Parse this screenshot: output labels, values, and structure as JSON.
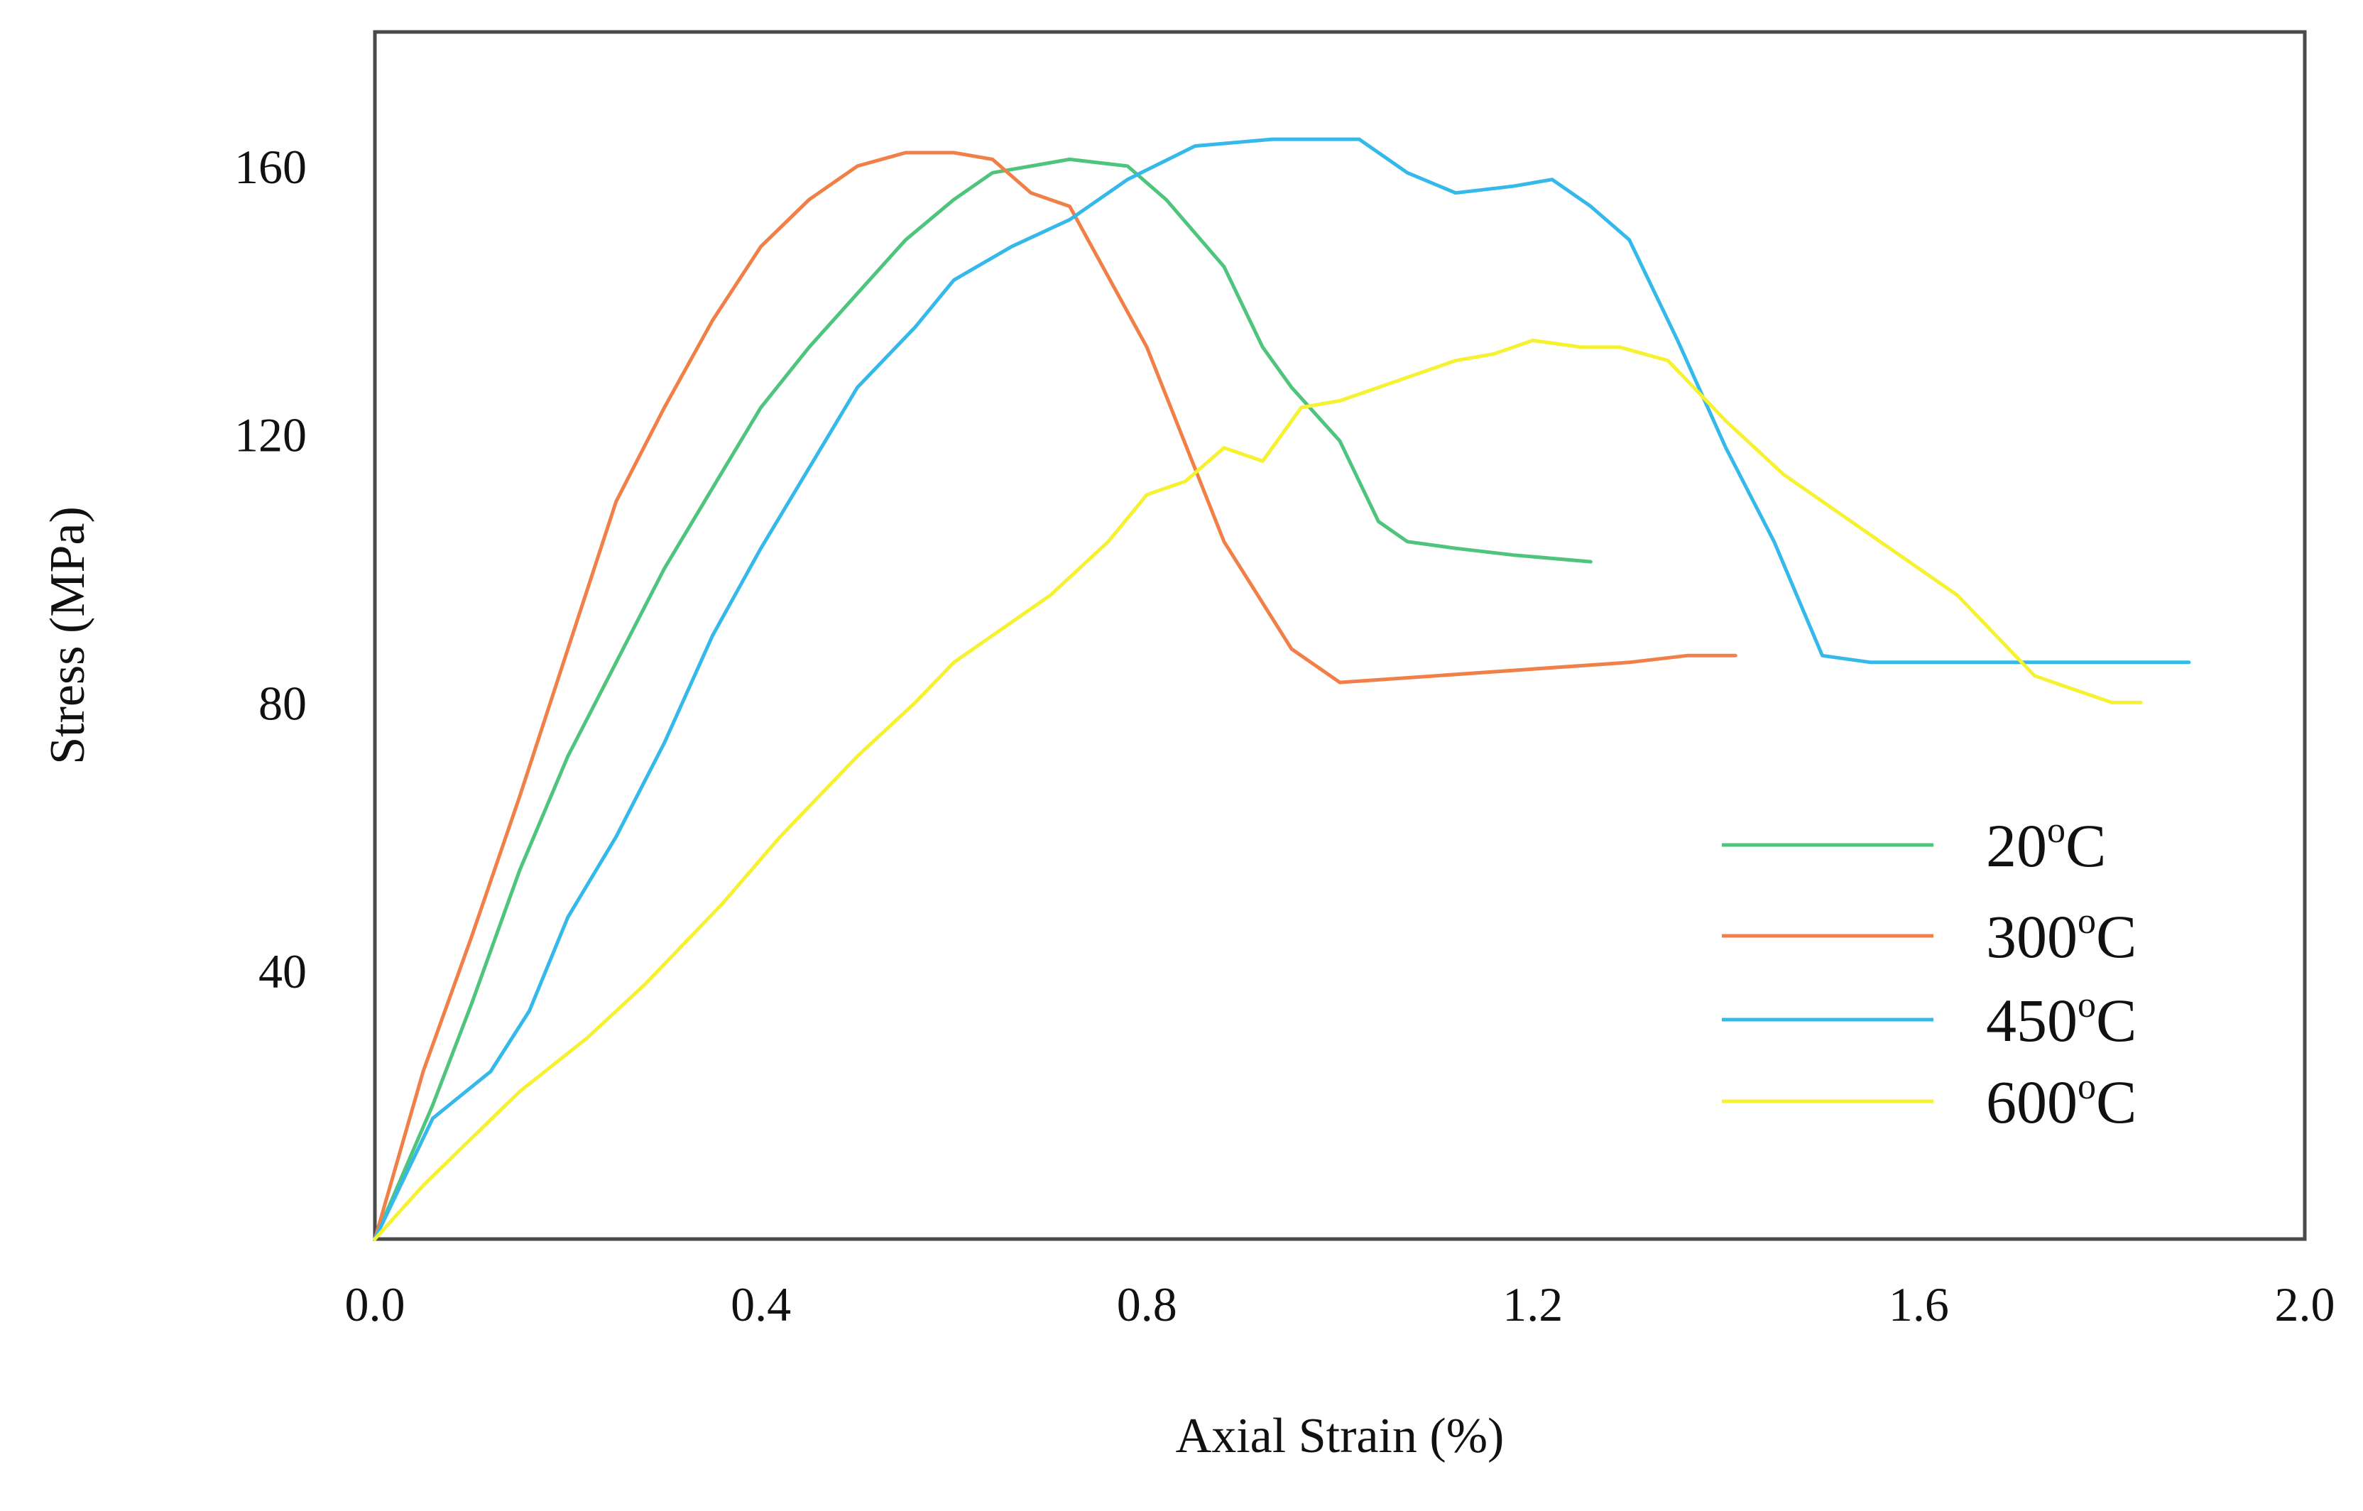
{
  "chart_data": {
    "type": "line",
    "title": "",
    "xlabel": "Axial Strain (%)",
    "ylabel": "Stress (MPa)",
    "xlim": [
      0.0,
      2.0
    ],
    "ylim": [
      0,
      180
    ],
    "x_ticks": [
      {
        "value": 0.0,
        "label": "0.0"
      },
      {
        "value": 0.4,
        "label": "0.4"
      },
      {
        "value": 0.8,
        "label": "0.8"
      },
      {
        "value": 1.2,
        "label": "1.2"
      },
      {
        "value": 1.6,
        "label": "1.6"
      },
      {
        "value": 2.0,
        "label": "2.0"
      }
    ],
    "y_ticks": [
      {
        "value": 40,
        "label": "40"
      },
      {
        "value": 80,
        "label": "80"
      },
      {
        "value": 120,
        "label": "120"
      },
      {
        "value": 160,
        "label": "160"
      }
    ],
    "grid": false,
    "legend_position": "bottom-right",
    "series": [
      {
        "name": "20°C",
        "legend_main": "20",
        "legend_sup": "o",
        "legend_unit": "C",
        "color": "#4fc47d",
        "x": [
          0.0,
          0.06,
          0.1,
          0.15,
          0.2,
          0.25,
          0.3,
          0.35,
          0.4,
          0.45,
          0.5,
          0.55,
          0.6,
          0.64,
          0.68,
          0.72,
          0.78,
          0.82,
          0.88,
          0.92,
          0.95,
          1.0,
          1.04,
          1.07,
          1.12,
          1.18,
          1.26
        ],
        "y": [
          0,
          20,
          35,
          55,
          72,
          86,
          100,
          112,
          124,
          133,
          141,
          149,
          155,
          159,
          160,
          161,
          160,
          155,
          145,
          133,
          127,
          119,
          107,
          104,
          103,
          102,
          101
        ]
      },
      {
        "name": "300°C",
        "legend_main": "300",
        "legend_sup": "o",
        "legend_unit": "C",
        "color": "#f08048",
        "x": [
          0.0,
          0.05,
          0.1,
          0.15,
          0.2,
          0.25,
          0.3,
          0.35,
          0.4,
          0.45,
          0.5,
          0.55,
          0.6,
          0.64,
          0.68,
          0.72,
          0.8,
          0.88,
          0.95,
          1.0,
          1.1,
          1.2,
          1.3,
          1.36,
          1.41
        ],
        "y": [
          0,
          25,
          45,
          66,
          88,
          110,
          124,
          137,
          148,
          155,
          160,
          162,
          162,
          161,
          156,
          154,
          133,
          104,
          88,
          83,
          84,
          85,
          86,
          87,
          87
        ]
      },
      {
        "name": "450°C",
        "legend_main": "450",
        "legend_sup": "o",
        "legend_unit": "C",
        "color": "#35b8ea",
        "x": [
          0.0,
          0.06,
          0.12,
          0.16,
          0.2,
          0.25,
          0.3,
          0.35,
          0.4,
          0.45,
          0.5,
          0.56,
          0.6,
          0.66,
          0.72,
          0.78,
          0.85,
          0.93,
          1.02,
          1.07,
          1.12,
          1.18,
          1.22,
          1.26,
          1.3,
          1.35,
          1.4,
          1.45,
          1.5,
          1.55,
          1.6,
          1.7,
          1.8,
          1.88
        ],
        "y": [
          0,
          18,
          25,
          34,
          48,
          60,
          74,
          90,
          103,
          115,
          127,
          136,
          143,
          148,
          152,
          158,
          163,
          164,
          164,
          159,
          156,
          157,
          158,
          154,
          149,
          134,
          118,
          104,
          87,
          86,
          86,
          86,
          86,
          86
        ]
      },
      {
        "name": "600°C",
        "legend_main": "600",
        "legend_sup": "o",
        "legend_unit": "C",
        "color": "#f7f231",
        "x": [
          0.0,
          0.05,
          0.1,
          0.15,
          0.22,
          0.28,
          0.36,
          0.42,
          0.5,
          0.56,
          0.6,
          0.64,
          0.7,
          0.76,
          0.8,
          0.84,
          0.88,
          0.92,
          0.96,
          1.0,
          1.04,
          1.08,
          1.12,
          1.16,
          1.2,
          1.25,
          1.29,
          1.34,
          1.4,
          1.46,
          1.52,
          1.56,
          1.6,
          1.64,
          1.68,
          1.72,
          1.76,
          1.8,
          1.83
        ],
        "y": [
          0,
          8,
          15,
          22,
          30,
          38,
          50,
          60,
          72,
          80,
          86,
          90,
          96,
          104,
          111,
          113,
          118,
          116,
          124,
          125,
          127,
          129,
          131,
          132,
          134,
          133,
          133,
          131,
          122,
          114,
          108,
          104,
          100,
          96,
          90,
          84,
          82,
          80,
          80
        ]
      }
    ]
  }
}
